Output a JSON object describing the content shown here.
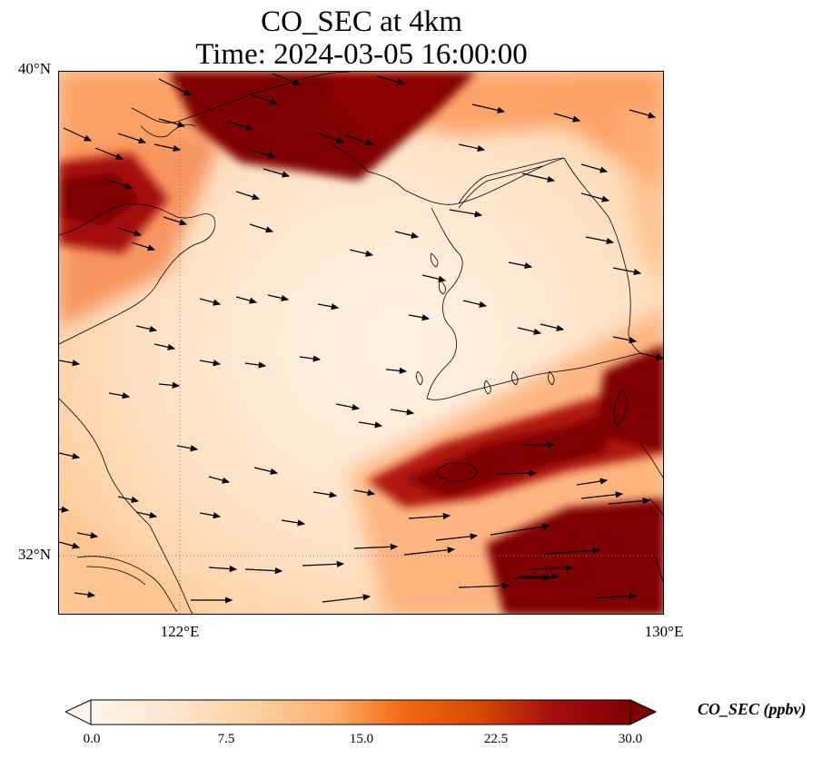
{
  "title": {
    "line1": "CO_SEC at 4km",
    "line2": "Time: 2024-03-05 16:00:00"
  },
  "map": {
    "extent": {
      "lon_min": 119.0,
      "lon_max": 130.0,
      "lat_min": 31.0,
      "lat_max": 40.0
    },
    "lat_ticks": [
      {
        "value": 40,
        "label": "40°N"
      },
      {
        "value": 32,
        "label": "32°N"
      }
    ],
    "lon_ticks": [
      {
        "value": 122,
        "label": "122°E"
      },
      {
        "value": 130,
        "label": "130°E"
      }
    ],
    "gridlines": true,
    "coastlines": true,
    "wind_vectors": true,
    "dominant_wind_direction": "west to east"
  },
  "colorbar": {
    "label": "CO_SEC (ppbv)",
    "min": 0.0,
    "max": 30.0,
    "ticks": [
      "0.0",
      "7.5",
      "15.0",
      "22.5",
      "30.0"
    ],
    "extend": "both",
    "colors": [
      "#fff5eb",
      "#fee6ce",
      "#fdd0a2",
      "#fdae6b",
      "#fd8d3c",
      "#f16913",
      "#d94801",
      "#a63603",
      "#7f0000"
    ]
  }
}
